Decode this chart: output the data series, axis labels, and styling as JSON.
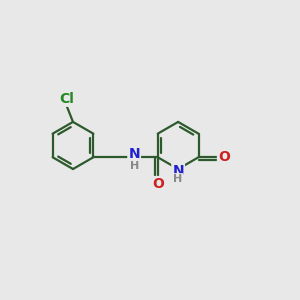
{
  "background_color": "#e8e8e8",
  "bond_color": "#2d5a2d",
  "bond_width": 1.6,
  "atom_colors": {
    "N_amide": "#2222cc",
    "N_ring": "#2222cc",
    "O": "#cc2222",
    "Cl": "#228822",
    "H": "#888888"
  },
  "font_size": 10,
  "fig_width": 3.0,
  "fig_height": 3.0,
  "xlim": [
    0.0,
    6.5
  ],
  "ylim": [
    0.2,
    3.8
  ]
}
